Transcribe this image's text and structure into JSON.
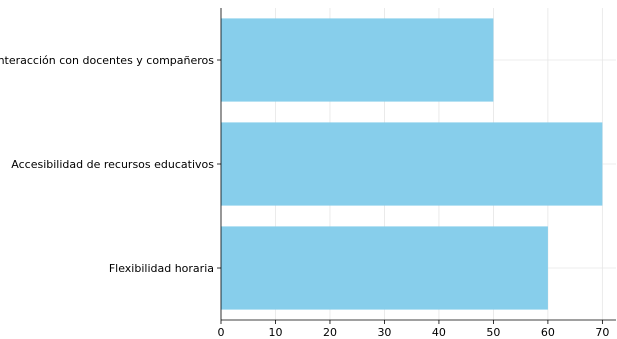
{
  "chart_data": {
    "type": "bar",
    "orientation": "horizontal",
    "categories": [
      "Flexibilidad horaria",
      "Accesibilidad de recursos educativos",
      "Interacción con docentes y compañeros"
    ],
    "values": [
      60,
      70,
      50
    ],
    "xlim": [
      0,
      72.5
    ],
    "xticks": [
      0,
      10,
      20,
      30,
      40,
      50,
      60,
      70
    ],
    "grid": true,
    "legend": "none",
    "bar_color": "#87ceeb",
    "title": "",
    "xlabel": "",
    "ylabel": ""
  }
}
